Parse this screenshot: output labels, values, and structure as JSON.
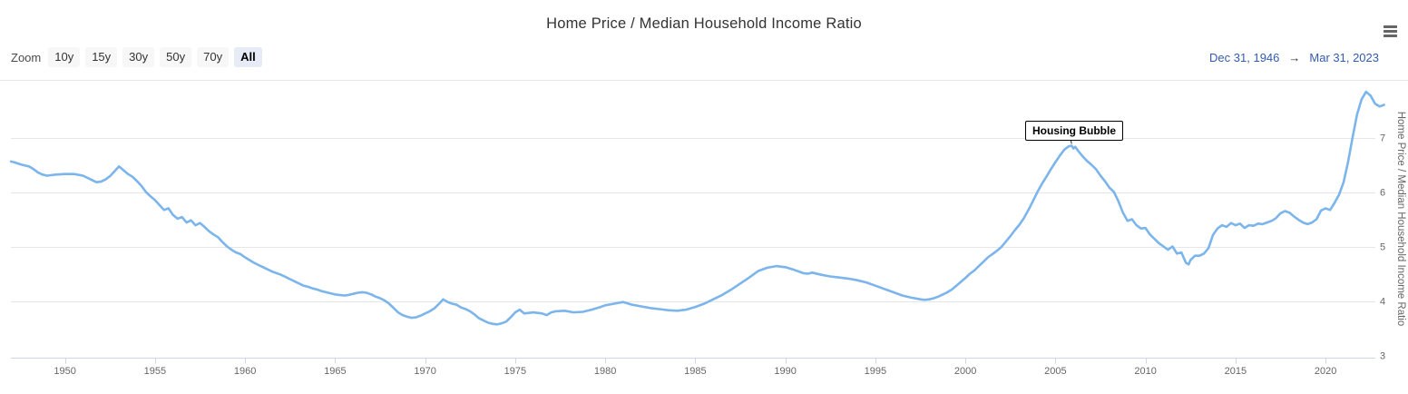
{
  "header": {
    "title": "Home Price / Median Household Income Ratio"
  },
  "toolbar": {
    "zoom_label": "Zoom",
    "buttons": [
      {
        "label": "10y",
        "selected": false
      },
      {
        "label": "15y",
        "selected": false
      },
      {
        "label": "30y",
        "selected": false
      },
      {
        "label": "50y",
        "selected": false
      },
      {
        "label": "70y",
        "selected": false
      },
      {
        "label": "All",
        "selected": true
      }
    ],
    "range": {
      "from": "Dec 31, 1946",
      "arrow": "→",
      "to": "Mar 31, 2023"
    }
  },
  "colors": {
    "series_blue": "#7cb5ec",
    "link_blue": "#335cad",
    "grid_gray": "#e6e6e6",
    "axis_blue_gray": "#ccd6eb",
    "label_gray": "#666666",
    "title_gray": "#333333",
    "button_bg": "#f7f7f7",
    "button_selected_bg": "#e6ebf5"
  },
  "chart_data": {
    "type": "line",
    "title": "Home Price / Median Household Income Ratio",
    "xlabel": "",
    "ylabel": "Home Price / Median Household Income Ratio",
    "xlim": [
      1946.997,
      2023.25
    ],
    "ylim": [
      3,
      8.06
    ],
    "x_ticks": [
      1950,
      1955,
      1960,
      1965,
      1970,
      1975,
      1980,
      1985,
      1990,
      1995,
      2000,
      2005,
      2010,
      2015,
      2020
    ],
    "y_ticks": [
      3,
      4,
      5,
      6,
      7
    ],
    "grid": "horizontal",
    "legend": "none",
    "annotations": [
      {
        "label": "Housing Bubble",
        "x": 2005.9,
        "y": 6.85
      }
    ],
    "series": [
      {
        "name": "Home Price / Median Household Income Ratio",
        "points": [
          [
            1947.0,
            6.56
          ],
          [
            1947.25,
            6.54
          ],
          [
            1947.5,
            6.51
          ],
          [
            1947.75,
            6.49
          ],
          [
            1948.0,
            6.47
          ],
          [
            1948.25,
            6.42
          ],
          [
            1948.5,
            6.36
          ],
          [
            1948.75,
            6.32
          ],
          [
            1949.0,
            6.3
          ],
          [
            1949.5,
            6.32
          ],
          [
            1950.0,
            6.33
          ],
          [
            1950.5,
            6.33
          ],
          [
            1951.0,
            6.3
          ],
          [
            1951.5,
            6.22
          ],
          [
            1951.75,
            6.18
          ],
          [
            1952.0,
            6.19
          ],
          [
            1952.25,
            6.23
          ],
          [
            1952.5,
            6.29
          ],
          [
            1952.75,
            6.38
          ],
          [
            1953.0,
            6.47
          ],
          [
            1953.25,
            6.4
          ],
          [
            1953.5,
            6.33
          ],
          [
            1953.75,
            6.28
          ],
          [
            1954.0,
            6.2
          ],
          [
            1954.25,
            6.11
          ],
          [
            1954.5,
            6.0
          ],
          [
            1954.75,
            5.92
          ],
          [
            1955.0,
            5.85
          ],
          [
            1955.25,
            5.76
          ],
          [
            1955.5,
            5.67
          ],
          [
            1955.75,
            5.7
          ],
          [
            1956.0,
            5.58
          ],
          [
            1956.25,
            5.51
          ],
          [
            1956.5,
            5.54
          ],
          [
            1956.75,
            5.44
          ],
          [
            1957.0,
            5.48
          ],
          [
            1957.25,
            5.39
          ],
          [
            1957.5,
            5.43
          ],
          [
            1957.75,
            5.36
          ],
          [
            1958.0,
            5.28
          ],
          [
            1958.25,
            5.22
          ],
          [
            1958.5,
            5.17
          ],
          [
            1958.75,
            5.08
          ],
          [
            1959.0,
            5.0
          ],
          [
            1959.25,
            4.94
          ],
          [
            1959.5,
            4.89
          ],
          [
            1959.75,
            4.86
          ],
          [
            1960.0,
            4.8
          ],
          [
            1960.25,
            4.75
          ],
          [
            1960.5,
            4.7
          ],
          [
            1960.75,
            4.66
          ],
          [
            1961.0,
            4.62
          ],
          [
            1961.25,
            4.58
          ],
          [
            1961.5,
            4.54
          ],
          [
            1961.75,
            4.51
          ],
          [
            1962.0,
            4.48
          ],
          [
            1962.25,
            4.44
          ],
          [
            1962.5,
            4.4
          ],
          [
            1962.75,
            4.36
          ],
          [
            1963.0,
            4.32
          ],
          [
            1963.25,
            4.28
          ],
          [
            1963.5,
            4.26
          ],
          [
            1963.75,
            4.23
          ],
          [
            1964.0,
            4.21
          ],
          [
            1964.25,
            4.18
          ],
          [
            1964.5,
            4.16
          ],
          [
            1964.75,
            4.14
          ],
          [
            1965.0,
            4.12
          ],
          [
            1965.25,
            4.11
          ],
          [
            1965.5,
            4.1
          ],
          [
            1965.75,
            4.11
          ],
          [
            1966.0,
            4.13
          ],
          [
            1966.25,
            4.15
          ],
          [
            1966.5,
            4.16
          ],
          [
            1966.75,
            4.15
          ],
          [
            1967.0,
            4.12
          ],
          [
            1967.25,
            4.08
          ],
          [
            1967.5,
            4.05
          ],
          [
            1967.75,
            4.01
          ],
          [
            1968.0,
            3.95
          ],
          [
            1968.25,
            3.87
          ],
          [
            1968.5,
            3.79
          ],
          [
            1968.75,
            3.74
          ],
          [
            1969.0,
            3.71
          ],
          [
            1969.25,
            3.69
          ],
          [
            1969.5,
            3.7
          ],
          [
            1969.75,
            3.73
          ],
          [
            1970.0,
            3.77
          ],
          [
            1970.25,
            3.81
          ],
          [
            1970.5,
            3.86
          ],
          [
            1970.75,
            3.94
          ],
          [
            1971.0,
            4.03
          ],
          [
            1971.25,
            3.98
          ],
          [
            1971.5,
            3.95
          ],
          [
            1971.75,
            3.93
          ],
          [
            1972.0,
            3.88
          ],
          [
            1972.25,
            3.85
          ],
          [
            1972.5,
            3.81
          ],
          [
            1972.75,
            3.75
          ],
          [
            1973.0,
            3.68
          ],
          [
            1973.25,
            3.64
          ],
          [
            1973.5,
            3.6
          ],
          [
            1973.75,
            3.58
          ],
          [
            1974.0,
            3.57
          ],
          [
            1974.25,
            3.59
          ],
          [
            1974.5,
            3.62
          ],
          [
            1974.75,
            3.7
          ],
          [
            1975.0,
            3.79
          ],
          [
            1975.25,
            3.84
          ],
          [
            1975.5,
            3.77
          ],
          [
            1976.0,
            3.79
          ],
          [
            1976.5,
            3.77
          ],
          [
            1976.75,
            3.74
          ],
          [
            1977.0,
            3.79
          ],
          [
            1977.25,
            3.81
          ],
          [
            1977.75,
            3.82
          ],
          [
            1978.25,
            3.79
          ],
          [
            1978.75,
            3.8
          ],
          [
            1979.25,
            3.84
          ],
          [
            1979.75,
            3.89
          ],
          [
            1980.0,
            3.92
          ],
          [
            1980.5,
            3.95
          ],
          [
            1981.0,
            3.98
          ],
          [
            1981.5,
            3.93
          ],
          [
            1982.0,
            3.9
          ],
          [
            1982.5,
            3.87
          ],
          [
            1983.0,
            3.85
          ],
          [
            1983.5,
            3.83
          ],
          [
            1984.0,
            3.82
          ],
          [
            1984.5,
            3.84
          ],
          [
            1985.0,
            3.89
          ],
          [
            1985.5,
            3.95
          ],
          [
            1986.0,
            4.03
          ],
          [
            1986.5,
            4.11
          ],
          [
            1987.0,
            4.21
          ],
          [
            1987.5,
            4.32
          ],
          [
            1988.0,
            4.43
          ],
          [
            1988.5,
            4.55
          ],
          [
            1989.0,
            4.61
          ],
          [
            1989.5,
            4.64
          ],
          [
            1990.0,
            4.62
          ],
          [
            1990.5,
            4.57
          ],
          [
            1991.0,
            4.51
          ],
          [
            1991.25,
            4.5
          ],
          [
            1991.5,
            4.52
          ],
          [
            1992.0,
            4.48
          ],
          [
            1992.5,
            4.45
          ],
          [
            1993.0,
            4.43
          ],
          [
            1993.5,
            4.41
          ],
          [
            1994.0,
            4.38
          ],
          [
            1994.5,
            4.34
          ],
          [
            1995.0,
            4.28
          ],
          [
            1995.5,
            4.22
          ],
          [
            1996.0,
            4.16
          ],
          [
            1996.5,
            4.1
          ],
          [
            1997.0,
            4.06
          ],
          [
            1997.5,
            4.03
          ],
          [
            1997.75,
            4.02
          ],
          [
            1998.0,
            4.03
          ],
          [
            1998.25,
            4.05
          ],
          [
            1998.5,
            4.08
          ],
          [
            1998.75,
            4.12
          ],
          [
            1999.0,
            4.16
          ],
          [
            1999.25,
            4.21
          ],
          [
            1999.5,
            4.28
          ],
          [
            1999.75,
            4.35
          ],
          [
            2000.0,
            4.42
          ],
          [
            2000.25,
            4.5
          ],
          [
            2000.5,
            4.56
          ],
          [
            2000.75,
            4.64
          ],
          [
            2001.0,
            4.72
          ],
          [
            2001.25,
            4.8
          ],
          [
            2001.5,
            4.86
          ],
          [
            2001.75,
            4.92
          ],
          [
            2002.0,
            4.99
          ],
          [
            2002.25,
            5.09
          ],
          [
            2002.5,
            5.19
          ],
          [
            2002.75,
            5.3
          ],
          [
            2003.0,
            5.4
          ],
          [
            2003.25,
            5.52
          ],
          [
            2003.5,
            5.67
          ],
          [
            2003.75,
            5.83
          ],
          [
            2004.0,
            6.0
          ],
          [
            2004.25,
            6.15
          ],
          [
            2004.5,
            6.28
          ],
          [
            2004.75,
            6.42
          ],
          [
            2005.0,
            6.55
          ],
          [
            2005.25,
            6.67
          ],
          [
            2005.5,
            6.78
          ],
          [
            2005.75,
            6.84
          ],
          [
            2005.9,
            6.85
          ],
          [
            2006.0,
            6.8
          ],
          [
            2006.1,
            6.83
          ],
          [
            2006.25,
            6.76
          ],
          [
            2006.5,
            6.66
          ],
          [
            2006.75,
            6.57
          ],
          [
            2007.0,
            6.5
          ],
          [
            2007.25,
            6.42
          ],
          [
            2007.5,
            6.3
          ],
          [
            2007.75,
            6.2
          ],
          [
            2008.0,
            6.08
          ],
          [
            2008.25,
            6.0
          ],
          [
            2008.5,
            5.83
          ],
          [
            2008.75,
            5.62
          ],
          [
            2009.0,
            5.47
          ],
          [
            2009.25,
            5.5
          ],
          [
            2009.5,
            5.39
          ],
          [
            2009.75,
            5.33
          ],
          [
            2010.0,
            5.34
          ],
          [
            2010.25,
            5.22
          ],
          [
            2010.5,
            5.14
          ],
          [
            2010.75,
            5.06
          ],
          [
            2011.0,
            5.0
          ],
          [
            2011.25,
            4.94
          ],
          [
            2011.5,
            5.0
          ],
          [
            2011.75,
            4.87
          ],
          [
            2012.0,
            4.89
          ],
          [
            2012.1,
            4.81
          ],
          [
            2012.25,
            4.7
          ],
          [
            2012.4,
            4.67
          ],
          [
            2012.5,
            4.75
          ],
          [
            2012.75,
            4.83
          ],
          [
            2013.0,
            4.83
          ],
          [
            2013.25,
            4.87
          ],
          [
            2013.5,
            4.97
          ],
          [
            2013.75,
            5.21
          ],
          [
            2014.0,
            5.33
          ],
          [
            2014.25,
            5.39
          ],
          [
            2014.5,
            5.36
          ],
          [
            2014.75,
            5.43
          ],
          [
            2015.0,
            5.39
          ],
          [
            2015.25,
            5.42
          ],
          [
            2015.5,
            5.34
          ],
          [
            2015.75,
            5.39
          ],
          [
            2016.0,
            5.38
          ],
          [
            2016.25,
            5.42
          ],
          [
            2016.5,
            5.41
          ],
          [
            2016.75,
            5.44
          ],
          [
            2017.0,
            5.47
          ],
          [
            2017.25,
            5.52
          ],
          [
            2017.5,
            5.61
          ],
          [
            2017.75,
            5.65
          ],
          [
            2018.0,
            5.62
          ],
          [
            2018.25,
            5.55
          ],
          [
            2018.5,
            5.49
          ],
          [
            2018.75,
            5.44
          ],
          [
            2019.0,
            5.41
          ],
          [
            2019.25,
            5.44
          ],
          [
            2019.5,
            5.5
          ],
          [
            2019.75,
            5.66
          ],
          [
            2020.0,
            5.7
          ],
          [
            2020.25,
            5.67
          ],
          [
            2020.5,
            5.8
          ],
          [
            2020.75,
            5.95
          ],
          [
            2021.0,
            6.18
          ],
          [
            2021.25,
            6.55
          ],
          [
            2021.5,
            7.0
          ],
          [
            2021.75,
            7.42
          ],
          [
            2022.0,
            7.7
          ],
          [
            2022.25,
            7.84
          ],
          [
            2022.5,
            7.77
          ],
          [
            2022.75,
            7.62
          ],
          [
            2023.0,
            7.57
          ],
          [
            2023.25,
            7.6
          ]
        ]
      }
    ]
  }
}
